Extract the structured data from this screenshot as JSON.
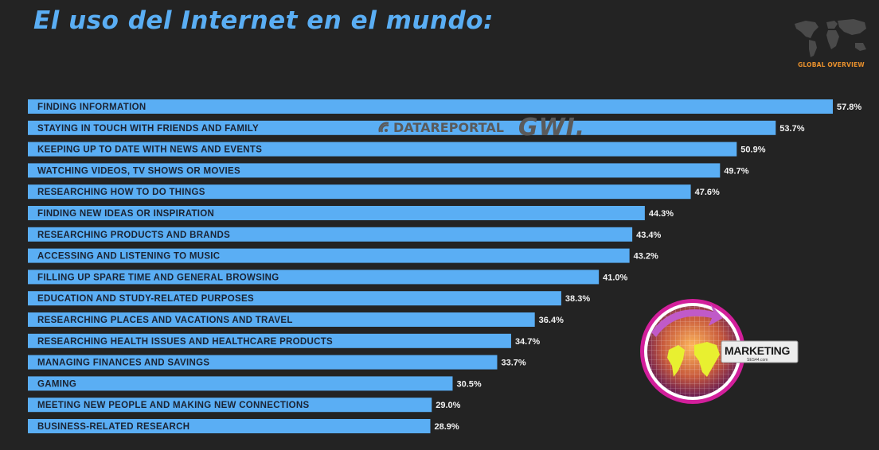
{
  "header": {
    "title": "El uso del Internet en el mundo:",
    "badge_label": "GLOBAL OVERVIEW"
  },
  "watermark": {
    "datareportal": "DATAREPORTAL",
    "gwi": "GWI."
  },
  "logo": {
    "word": "MARKETING",
    "sub": "SES44.com"
  },
  "colors": {
    "bar": "#5aaef4",
    "value_text": "#f2f2f2",
    "accent": "#e8902d"
  },
  "chart_data": {
    "type": "bar",
    "orientation": "horizontal",
    "categories": [
      "FINDING INFORMATION",
      "STAYING IN TOUCH WITH FRIENDS AND FAMILY",
      "KEEPING UP TO DATE WITH NEWS AND EVENTS",
      "WATCHING VIDEOS, TV SHOWS OR MOVIES",
      "RESEARCHING HOW TO DO THINGS",
      "FINDING NEW IDEAS OR INSPIRATION",
      "RESEARCHING PRODUCTS AND BRANDS",
      "ACCESSING AND LISTENING TO MUSIC",
      "FILLING UP SPARE TIME AND GENERAL BROWSING",
      "EDUCATION AND STUDY-RELATED PURPOSES",
      "RESEARCHING PLACES AND VACATIONS AND TRAVEL",
      "RESEARCHING HEALTH ISSUES AND HEALTHCARE PRODUCTS",
      "MANAGING FINANCES AND SAVINGS",
      "GAMING",
      "MEETING NEW PEOPLE AND MAKING NEW CONNECTIONS",
      "BUSINESS-RELATED RESEARCH"
    ],
    "values": [
      57.8,
      53.7,
      50.9,
      49.7,
      47.6,
      44.3,
      43.4,
      43.2,
      41.0,
      38.3,
      36.4,
      34.7,
      33.7,
      30.5,
      29.0,
      28.9
    ],
    "value_labels": [
      "57.8%",
      "53.7%",
      "50.9%",
      "49.7%",
      "47.6%",
      "44.3%",
      "43.4%",
      "43.2%",
      "41.0%",
      "38.3%",
      "36.4%",
      "34.7%",
      "33.7%",
      "30.5%",
      "29.0%",
      "28.9%"
    ],
    "title": "El uso del Internet en el mundo:",
    "xlabel": "",
    "ylabel": "",
    "xlim": [
      0,
      57.8
    ],
    "grid": false,
    "legend": "none"
  }
}
